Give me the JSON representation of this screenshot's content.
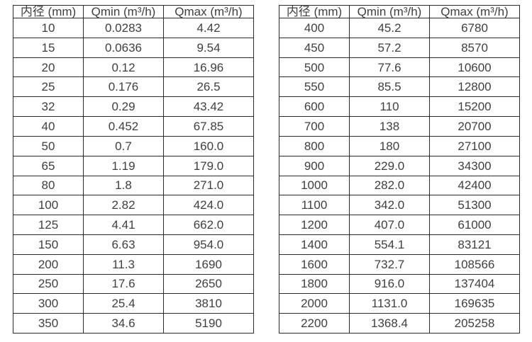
{
  "colors": {
    "border": "#2b2b2b",
    "text": "#3f3f3f",
    "background": "#ffffff"
  },
  "tables": [
    {
      "name": "flow-rates-small-diameters",
      "headers": [
        "内径 (mm)",
        "Qmin (m³/h)",
        "Qmax (m³/h)"
      ],
      "rows": [
        [
          "10",
          "0.0283",
          "4.42"
        ],
        [
          "15",
          "0.0636",
          "9.54"
        ],
        [
          "20",
          "0.12",
          "16.96"
        ],
        [
          "25",
          "0.176",
          "26.5"
        ],
        [
          "32",
          "0.29",
          "43.42"
        ],
        [
          "40",
          "0.452",
          "67.85"
        ],
        [
          "50",
          "0.7",
          "160.0"
        ],
        [
          "65",
          "1.19",
          "179.0"
        ],
        [
          "80",
          "1.8",
          "271.0"
        ],
        [
          "100",
          "2.82",
          "424.0"
        ],
        [
          "125",
          "4.41",
          "662.0"
        ],
        [
          "150",
          "6.63",
          "954.0"
        ],
        [
          "200",
          "11.3",
          "1690"
        ],
        [
          "250",
          "17.6",
          "2650"
        ],
        [
          "300",
          "25.4",
          "3810"
        ],
        [
          "350",
          "34.6",
          "5190"
        ]
      ]
    },
    {
      "name": "flow-rates-large-diameters",
      "headers": [
        "内径 (mm)",
        "Qmin (m³/h)",
        "Qmax (m³/h)"
      ],
      "rows": [
        [
          "400",
          "45.2",
          "6780"
        ],
        [
          "450",
          "57.2",
          "8570"
        ],
        [
          "500",
          "77.6",
          "10600"
        ],
        [
          "550",
          "85.5",
          "12800"
        ],
        [
          "600",
          "110",
          "15200"
        ],
        [
          "700",
          "138",
          "20700"
        ],
        [
          "800",
          "180",
          "27100"
        ],
        [
          "900",
          "229.0",
          "34300"
        ],
        [
          "1000",
          "282.0",
          "42400"
        ],
        [
          "1100",
          "342.0",
          "51300"
        ],
        [
          "1200",
          "407.0",
          "61000"
        ],
        [
          "1400",
          "554.1",
          "83121"
        ],
        [
          "1600",
          "732.7",
          "108566"
        ],
        [
          "1800",
          "916.0",
          "137404"
        ],
        [
          "2000",
          "1131.0",
          "169635"
        ],
        [
          "2200",
          "1368.4",
          "205258"
        ]
      ]
    }
  ]
}
